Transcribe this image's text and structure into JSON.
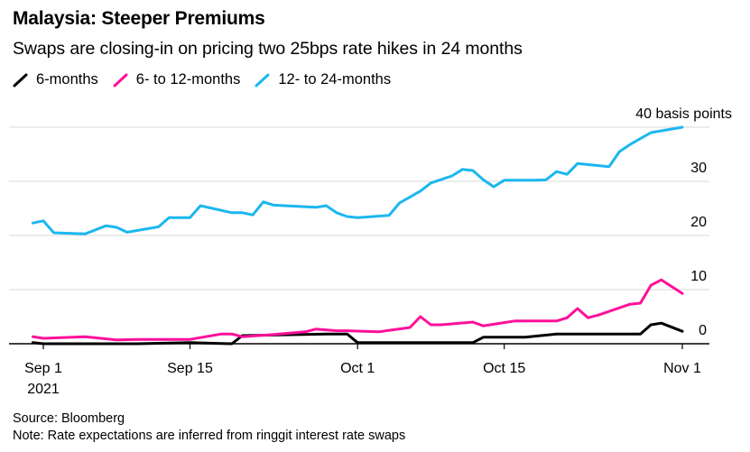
{
  "title": "Malaysia: Steeper Premiums",
  "subtitle": "Swaps are closing-in on pricing two 25bps rate hikes in 24 months",
  "legend": [
    {
      "label": "6-months",
      "color": "#000000"
    },
    {
      "label": "6- to 12-months",
      "color": "#ff0f9a"
    },
    {
      "label": "12- to 24-months",
      "color": "#1bb7f0"
    }
  ],
  "source": "Source: Bloomberg",
  "note": "Note: Rate expectations are inferred from ringgit interest rate swaps",
  "chart_data": {
    "type": "line",
    "x_ticks": [
      {
        "date": "2021-09-01",
        "label": "Sep 1",
        "sublabel": "2021"
      },
      {
        "date": "2021-09-15",
        "label": "Sep 15",
        "sublabel": ""
      },
      {
        "date": "2021-10-01",
        "label": "Oct 1",
        "sublabel": ""
      },
      {
        "date": "2021-10-15",
        "label": "Oct 15",
        "sublabel": ""
      },
      {
        "date": "2021-11-01",
        "label": "Nov 1",
        "sublabel": ""
      }
    ],
    "y_ticks": [
      {
        "value": 0,
        "label": "0"
      },
      {
        "value": 10,
        "label": "10"
      },
      {
        "value": 20,
        "label": "20"
      },
      {
        "value": 30,
        "label": "30"
      },
      {
        "value": 40,
        "label": "40 basis points"
      }
    ],
    "xlim": [
      "2021-09-01",
      "2021-11-01"
    ],
    "ylim": [
      0,
      40
    ],
    "grid": true,
    "series": [
      {
        "name": "6-months",
        "color": "#000000",
        "points": [
          [
            "2021-08-31",
            0.2
          ],
          [
            "2021-09-01",
            0.0
          ],
          [
            "2021-09-10",
            0.0
          ],
          [
            "2021-09-15",
            0.2
          ],
          [
            "2021-09-19",
            0.0
          ],
          [
            "2021-09-20",
            1.5
          ],
          [
            "2021-09-28",
            1.8
          ],
          [
            "2021-09-30",
            1.8
          ],
          [
            "2021-10-01",
            0.2
          ],
          [
            "2021-10-12",
            0.2
          ],
          [
            "2021-10-13",
            1.2
          ],
          [
            "2021-10-17",
            1.2
          ],
          [
            "2021-10-20",
            1.8
          ],
          [
            "2021-10-28",
            1.8
          ],
          [
            "2021-10-29",
            3.5
          ],
          [
            "2021-10-30",
            3.8
          ],
          [
            "2021-11-01",
            2.3
          ]
        ]
      },
      {
        "name": "6- to 12-months",
        "color": "#ff0f9a",
        "points": [
          [
            "2021-08-31",
            1.3
          ],
          [
            "2021-09-01",
            1.0
          ],
          [
            "2021-09-05",
            1.3
          ],
          [
            "2021-09-08",
            0.7
          ],
          [
            "2021-09-10",
            0.8
          ],
          [
            "2021-09-15",
            0.8
          ],
          [
            "2021-09-18",
            1.8
          ],
          [
            "2021-09-19",
            1.8
          ],
          [
            "2021-09-20",
            1.3
          ],
          [
            "2021-09-23",
            1.7
          ],
          [
            "2021-09-26",
            2.2
          ],
          [
            "2021-09-27",
            2.7
          ],
          [
            "2021-09-29",
            2.4
          ],
          [
            "2021-09-30",
            2.4
          ],
          [
            "2021-10-03",
            2.2
          ],
          [
            "2021-10-06",
            3.0
          ],
          [
            "2021-10-07",
            5.0
          ],
          [
            "2021-10-08",
            3.5
          ],
          [
            "2021-10-09",
            3.5
          ],
          [
            "2021-10-12",
            4.0
          ],
          [
            "2021-10-13",
            3.3
          ],
          [
            "2021-10-14",
            3.6
          ],
          [
            "2021-10-16",
            4.2
          ],
          [
            "2021-10-20",
            4.2
          ],
          [
            "2021-10-21",
            4.8
          ],
          [
            "2021-10-22",
            6.5
          ],
          [
            "2021-10-23",
            4.8
          ],
          [
            "2021-10-24",
            5.3
          ],
          [
            "2021-10-27",
            7.3
          ],
          [
            "2021-10-28",
            7.5
          ],
          [
            "2021-10-29",
            10.8
          ],
          [
            "2021-10-30",
            11.8
          ],
          [
            "2021-11-01",
            9.3
          ]
        ]
      },
      {
        "name": "12- to 24-months",
        "color": "#1bb7f0",
        "points": [
          [
            "2021-08-31",
            22.3
          ],
          [
            "2021-09-01",
            22.7
          ],
          [
            "2021-09-02",
            20.5
          ],
          [
            "2021-09-05",
            20.3
          ],
          [
            "2021-09-07",
            21.8
          ],
          [
            "2021-09-08",
            21.5
          ],
          [
            "2021-09-09",
            20.6
          ],
          [
            "2021-09-12",
            21.6
          ],
          [
            "2021-09-13",
            23.3
          ],
          [
            "2021-09-15",
            23.3
          ],
          [
            "2021-09-16",
            25.5
          ],
          [
            "2021-09-19",
            24.2
          ],
          [
            "2021-09-20",
            24.2
          ],
          [
            "2021-09-21",
            23.8
          ],
          [
            "2021-09-22",
            26.2
          ],
          [
            "2021-09-23",
            25.6
          ],
          [
            "2021-09-27",
            25.2
          ],
          [
            "2021-09-28",
            25.5
          ],
          [
            "2021-09-29",
            24.2
          ],
          [
            "2021-09-30",
            23.5
          ],
          [
            "2021-10-01",
            23.3
          ],
          [
            "2021-10-04",
            23.7
          ],
          [
            "2021-10-05",
            26.0
          ],
          [
            "2021-10-07",
            28.2
          ],
          [
            "2021-10-08",
            29.7
          ],
          [
            "2021-10-10",
            31.0
          ],
          [
            "2021-10-11",
            32.2
          ],
          [
            "2021-10-12",
            32.0
          ],
          [
            "2021-10-13",
            30.3
          ],
          [
            "2021-10-14",
            29.0
          ],
          [
            "2021-10-15",
            30.2
          ],
          [
            "2021-10-18",
            30.2
          ],
          [
            "2021-10-19",
            30.3
          ],
          [
            "2021-10-20",
            31.8
          ],
          [
            "2021-10-21",
            31.3
          ],
          [
            "2021-10-22",
            33.3
          ],
          [
            "2021-10-25",
            32.7
          ],
          [
            "2021-10-26",
            35.5
          ],
          [
            "2021-10-27",
            36.8
          ],
          [
            "2021-10-29",
            39.0
          ],
          [
            "2021-11-01",
            40.0
          ]
        ]
      }
    ]
  }
}
